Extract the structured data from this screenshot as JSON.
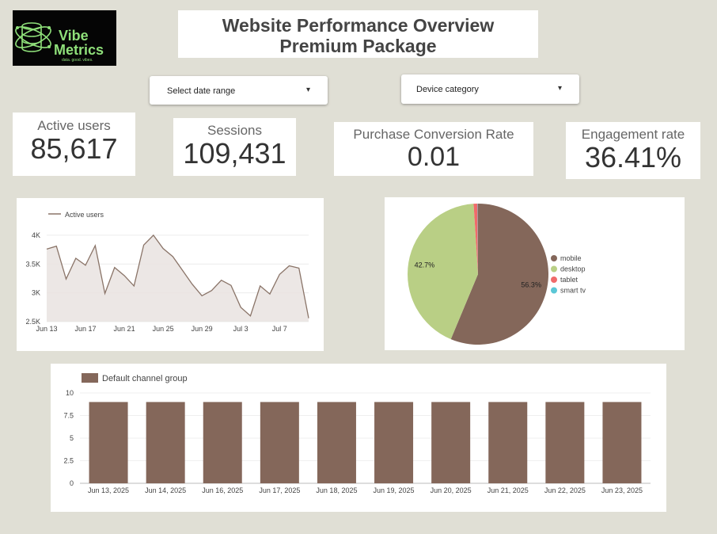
{
  "logo": {
    "line1": "Vibe",
    "line2": "Metrics",
    "tagline": "data. good. vibes."
  },
  "header": {
    "title": "Website Performance Overview",
    "subtitle": "Premium Package"
  },
  "filters": {
    "date_range": {
      "label": "Select date range",
      "caret": "▾"
    },
    "device_category": {
      "label": "Device category",
      "caret": "▾"
    }
  },
  "kpis": {
    "active_users": {
      "label": "Active users",
      "value": "85,617"
    },
    "sessions": {
      "label": "Sessions",
      "value": "109,431"
    },
    "purchase_conversion_rate": {
      "label": "Purchase Conversion Rate",
      "value": "0.01"
    },
    "engagement_rate": {
      "label": "Engagement rate",
      "value": "36.41%"
    }
  },
  "chart_data": [
    {
      "type": "area",
      "legend": [
        "Active users"
      ],
      "legend_position": "top-left",
      "x_tick_labels": [
        "Jun 13",
        "Jun 17",
        "Jun 21",
        "Jun 25",
        "Jun 29",
        "Jul 3",
        "Jul 7"
      ],
      "y_tick_labels": [
        "2.5K",
        "3K",
        "3.5K",
        "4K"
      ],
      "ylim": [
        2500,
        4150
      ],
      "grid": true,
      "colors": {
        "line": "#8a7468",
        "fill": "#e9e3e0"
      },
      "series": [
        {
          "name": "Active users",
          "x": [
            "Jun 13",
            "Jun 14",
            "Jun 15",
            "Jun 16",
            "Jun 17",
            "Jun 18",
            "Jun 19",
            "Jun 20",
            "Jun 21",
            "Jun 22",
            "Jun 23",
            "Jun 24",
            "Jun 25",
            "Jun 26",
            "Jun 27",
            "Jun 28",
            "Jun 29",
            "Jun 30",
            "Jul 1",
            "Jul 2",
            "Jul 3",
            "Jul 4",
            "Jul 5",
            "Jul 6",
            "Jul 7",
            "Jul 8",
            "Jul 9",
            "Jul 10"
          ],
          "values": [
            3760,
            3810,
            3240,
            3600,
            3480,
            3820,
            2990,
            3440,
            3300,
            3120,
            3830,
            4000,
            3770,
            3630,
            3390,
            3150,
            2950,
            3040,
            3220,
            3130,
            2750,
            2600,
            3120,
            2980,
            3320,
            3470,
            3430,
            2560
          ]
        }
      ]
    },
    {
      "type": "pie",
      "legend_position": "right",
      "slices": [
        {
          "label": "mobile",
          "value": 56.3,
          "display": "56.3%",
          "color": "#84675a"
        },
        {
          "label": "desktop",
          "value": 42.7,
          "display": "42.7%",
          "color": "#b9cf85"
        },
        {
          "label": "tablet",
          "value": 0.9,
          "display": "",
          "color": "#f06b6b"
        },
        {
          "label": "smart tv",
          "value": 0.1,
          "display": "",
          "color": "#5bc7d6"
        }
      ]
    },
    {
      "type": "bar",
      "legend": [
        "Default channel group"
      ],
      "legend_position": "top-left",
      "categories": [
        "Jun 13, 2025",
        "Jun 14, 2025",
        "Jun 16, 2025",
        "Jun 17, 2025",
        "Jun 18, 2025",
        "Jun 19, 2025",
        "Jun 20, 2025",
        "Jun 21, 2025",
        "Jun 22, 2025",
        "Jun 23, 2025"
      ],
      "values": [
        9,
        9,
        9,
        9,
        9,
        9,
        9,
        9,
        9,
        9
      ],
      "y_tick_labels": [
        "0",
        "2.5",
        "5",
        "7.5",
        "10"
      ],
      "ylim": [
        0,
        10
      ],
      "grid": true,
      "color": "#84675a"
    }
  ]
}
